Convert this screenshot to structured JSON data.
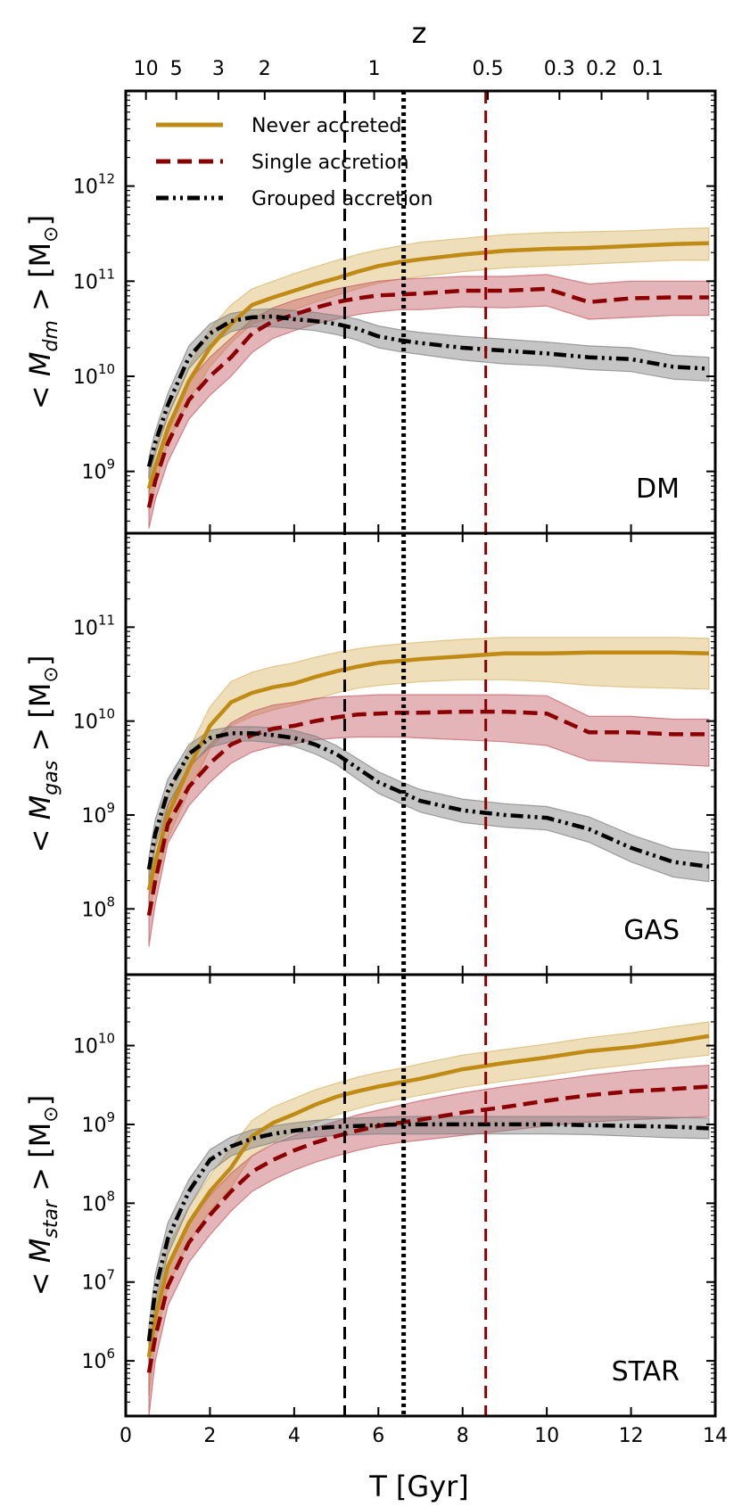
{
  "chart_data": {
    "type": "line",
    "x_label": "T [Gyr]",
    "x_range": [
      0,
      14
    ],
    "x_ticks": [
      0,
      2,
      4,
      6,
      8,
      10,
      12,
      14
    ],
    "top_axis": {
      "label": "z",
      "ticks": [
        {
          "label": "10",
          "t": 0.48
        },
        {
          "label": "5",
          "t": 1.2
        },
        {
          "label": "3",
          "t": 2.2
        },
        {
          "label": "2",
          "t": 3.3
        },
        {
          "label": "1",
          "t": 5.9
        },
        {
          "label": "0.5",
          "t": 8.6
        },
        {
          "label": "0.3",
          "t": 10.3
        },
        {
          "label": "0.2",
          "t": 11.3
        },
        {
          "label": "0.1",
          "t": 12.4
        }
      ]
    },
    "vlines": [
      {
        "x": 5.2,
        "style": "dashed",
        "color": "#000000"
      },
      {
        "x": 6.6,
        "style": "dotted",
        "color": "#000000"
      },
      {
        "x": 8.55,
        "style": "dashed",
        "color": "#8b0000"
      }
    ],
    "legend": {
      "position": "upper-left",
      "entries": [
        {
          "label": "Never accreted",
          "series": "never",
          "color": "#c08b14",
          "style": "solid"
        },
        {
          "label": "Single accretion",
          "series": "single",
          "color": "#8b0000",
          "style": "dashed"
        },
        {
          "label": "Grouped accretion",
          "series": "grouped",
          "color": "#000000",
          "style": "dashdot"
        }
      ]
    },
    "colors": {
      "never": "#c08b14",
      "single": "#8b0000",
      "grouped": "#000000",
      "band_never": "#d9b566",
      "band_single": "#c45a62",
      "band_grouped": "#7f7f7f"
    },
    "x": [
      0.55,
      0.7,
      1.0,
      1.5,
      2.0,
      2.5,
      3.0,
      3.5,
      4.0,
      4.5,
      5.0,
      5.5,
      6.0,
      6.5,
      7.0,
      8.0,
      9.0,
      10.0,
      11.0,
      12.0,
      13.0,
      13.85
    ],
    "panels": [
      {
        "label": "DM",
        "y_label_parts": {
          "pre": "< M",
          "sub": "dm",
          "post": " > [M",
          "sun": "⊙",
          "close": "]"
        },
        "ylog_range": [
          8.35,
          13.0
        ],
        "y_ticks": [
          9,
          10,
          11,
          12
        ],
        "series": [
          {
            "name": "Never accreted",
            "key": "never",
            "style": "solid",
            "values": [
              8.82,
              9.05,
              9.45,
              9.95,
              10.3,
              10.55,
              10.75,
              10.83,
              10.9,
              10.97,
              11.03,
              11.1,
              11.16,
              11.2,
              11.23,
              11.28,
              11.32,
              11.34,
              11.35,
              11.37,
              11.39,
              11.4
            ],
            "upper": [
              9.0,
              9.25,
              9.6,
              10.1,
              10.5,
              10.75,
              10.92,
              11.0,
              11.08,
              11.15,
              11.22,
              11.28,
              11.33,
              11.37,
              11.41,
              11.45,
              11.49,
              11.51,
              11.52,
              11.53,
              11.55,
              11.56
            ],
            "lower": [
              8.6,
              8.85,
              9.3,
              9.75,
              10.1,
              10.35,
              10.55,
              10.62,
              10.7,
              10.78,
              10.85,
              10.92,
              10.98,
              11.02,
              11.05,
              11.1,
              11.14,
              11.16,
              11.18,
              11.2,
              11.22,
              11.22
            ]
          },
          {
            "name": "Single accretion",
            "key": "single",
            "style": "dashed",
            "values": [
              8.62,
              8.9,
              9.3,
              9.75,
              10.0,
              10.2,
              10.45,
              10.58,
              10.65,
              10.72,
              10.78,
              10.82,
              10.85,
              10.86,
              10.87,
              10.9,
              10.9,
              10.92,
              10.78,
              10.82,
              10.83,
              10.83
            ],
            "upper": [
              8.8,
              9.1,
              9.5,
              9.95,
              10.2,
              10.4,
              10.6,
              10.72,
              10.8,
              10.86,
              10.92,
              10.96,
              11.0,
              11.02,
              11.03,
              11.05,
              11.05,
              11.07,
              10.97,
              11.0,
              11.0,
              11.0
            ],
            "lower": [
              8.4,
              8.7,
              9.1,
              9.55,
              9.8,
              10.0,
              10.25,
              10.4,
              10.48,
              10.55,
              10.6,
              10.65,
              10.68,
              10.7,
              10.7,
              10.73,
              10.72,
              10.74,
              10.6,
              10.62,
              10.64,
              10.64
            ]
          },
          {
            "name": "Grouped accretion",
            "key": "grouped",
            "style": "dashdot",
            "values": [
              9.05,
              9.3,
              9.7,
              10.2,
              10.45,
              10.58,
              10.62,
              10.63,
              10.6,
              10.58,
              10.55,
              10.5,
              10.42,
              10.38,
              10.35,
              10.3,
              10.27,
              10.24,
              10.2,
              10.18,
              10.1,
              10.08
            ],
            "upper": [
              9.15,
              9.42,
              9.82,
              10.32,
              10.55,
              10.66,
              10.7,
              10.71,
              10.69,
              10.67,
              10.64,
              10.6,
              10.53,
              10.49,
              10.46,
              10.42,
              10.39,
              10.36,
              10.32,
              10.3,
              10.22,
              10.2
            ],
            "lower": [
              8.92,
              9.18,
              9.58,
              10.08,
              10.33,
              10.47,
              10.52,
              10.52,
              10.5,
              10.48,
              10.44,
              10.38,
              10.3,
              10.26,
              10.23,
              10.17,
              10.13,
              10.11,
              10.07,
              10.05,
              9.97,
              9.95
            ]
          }
        ]
      },
      {
        "label": "GAS",
        "y_label_parts": {
          "pre": "< M",
          "sub": "gas",
          "post": " > [M",
          "sun": "⊙",
          "close": "]"
        },
        "ylog_range": [
          7.3,
          12.0
        ],
        "y_ticks": [
          8,
          9,
          10,
          11
        ],
        "series": [
          {
            "name": "Never accreted",
            "key": "never",
            "style": "solid",
            "values": [
              8.2,
              8.5,
              9.0,
              9.5,
              9.95,
              10.2,
              10.3,
              10.36,
              10.4,
              10.47,
              10.53,
              10.58,
              10.62,
              10.64,
              10.66,
              10.69,
              10.72,
              10.72,
              10.73,
              10.73,
              10.73,
              10.72
            ],
            "upper": [
              8.4,
              8.7,
              9.2,
              9.7,
              10.15,
              10.42,
              10.52,
              10.58,
              10.62,
              10.68,
              10.73,
              10.77,
              10.8,
              10.82,
              10.84,
              10.87,
              10.89,
              10.89,
              10.89,
              10.89,
              10.89,
              10.88
            ],
            "lower": [
              7.95,
              8.25,
              8.75,
              9.25,
              9.7,
              9.95,
              10.05,
              10.12,
              10.17,
              10.23,
              10.3,
              10.35,
              10.38,
              10.4,
              10.42,
              10.44,
              10.44,
              10.42,
              10.38,
              10.36,
              10.35,
              10.34
            ]
          },
          {
            "name": "Single accretion",
            "key": "single",
            "style": "dashed",
            "values": [
              7.93,
              8.3,
              8.9,
              9.3,
              9.55,
              9.75,
              9.85,
              9.92,
              9.95,
              10.0,
              10.04,
              10.07,
              10.08,
              10.09,
              10.09,
              10.1,
              10.1,
              10.08,
              9.88,
              9.88,
              9.86,
              9.86
            ],
            "upper": [
              8.15,
              8.55,
              9.1,
              9.5,
              9.75,
              9.98,
              10.1,
              10.17,
              10.2,
              10.24,
              10.26,
              10.27,
              10.28,
              10.28,
              10.28,
              10.28,
              10.28,
              10.27,
              10.05,
              10.05,
              10.02,
              10.02
            ],
            "lower": [
              7.6,
              8.05,
              8.7,
              9.1,
              9.35,
              9.55,
              9.67,
              9.73,
              9.76,
              9.8,
              9.82,
              9.83,
              9.83,
              9.83,
              9.82,
              9.8,
              9.78,
              9.74,
              9.58,
              9.56,
              9.54,
              9.52
            ]
          },
          {
            "name": "Grouped accretion",
            "key": "grouped",
            "style": "dashdot",
            "values": [
              8.42,
              8.8,
              9.25,
              9.65,
              9.82,
              9.87,
              9.87,
              9.85,
              9.82,
              9.75,
              9.65,
              9.5,
              9.35,
              9.25,
              9.15,
              9.05,
              9.0,
              8.97,
              8.85,
              8.65,
              8.5,
              8.45
            ],
            "upper": [
              8.55,
              8.95,
              9.38,
              9.75,
              9.9,
              9.94,
              9.94,
              9.93,
              9.9,
              9.84,
              9.74,
              9.6,
              9.46,
              9.36,
              9.27,
              9.17,
              9.12,
              9.09,
              8.98,
              8.79,
              8.64,
              8.6
            ],
            "lower": [
              8.28,
              8.65,
              9.1,
              9.52,
              9.72,
              9.78,
              9.79,
              9.77,
              9.73,
              9.65,
              9.54,
              9.38,
              9.23,
              9.13,
              9.03,
              8.92,
              8.87,
              8.84,
              8.71,
              8.5,
              8.34,
              8.29
            ]
          }
        ]
      },
      {
        "label": "STAR",
        "y_label_parts": {
          "pre": "< M",
          "sub": "star",
          "post": " > [M",
          "sun": "⊙",
          "close": "]"
        },
        "ylog_range": [
          5.3,
          10.9
        ],
        "y_ticks": [
          6,
          7,
          8,
          9,
          10
        ],
        "series": [
          {
            "name": "Never accreted",
            "key": "never",
            "style": "solid",
            "values": [
              6.05,
              6.55,
              7.2,
              7.75,
              8.15,
              8.45,
              8.85,
              9.02,
              9.13,
              9.25,
              9.35,
              9.42,
              9.48,
              9.53,
              9.58,
              9.7,
              9.78,
              9.85,
              9.93,
              9.98,
              10.05,
              10.12
            ],
            "upper": [
              6.3,
              6.8,
              7.45,
              7.95,
              8.35,
              8.7,
              9.05,
              9.22,
              9.33,
              9.44,
              9.52,
              9.6,
              9.66,
              9.71,
              9.77,
              9.88,
              9.95,
              10.02,
              10.1,
              10.16,
              10.24,
              10.3
            ],
            "lower": [
              5.55,
              6.25,
              6.95,
              7.5,
              7.9,
              8.2,
              8.6,
              8.78,
              8.9,
              9.02,
              9.12,
              9.2,
              9.27,
              9.32,
              9.37,
              9.47,
              9.55,
              9.62,
              9.7,
              9.76,
              9.83,
              9.88
            ]
          },
          {
            "name": "Single accretion",
            "key": "single",
            "style": "dashed",
            "values": [
              5.85,
              6.3,
              6.95,
              7.5,
              7.85,
              8.15,
              8.4,
              8.55,
              8.67,
              8.77,
              8.85,
              8.92,
              8.98,
              9.02,
              9.06,
              9.15,
              9.22,
              9.3,
              9.37,
              9.42,
              9.45,
              9.48
            ],
            "upper": [
              6.1,
              6.6,
              7.2,
              7.75,
              8.1,
              8.38,
              8.6,
              8.75,
              8.86,
              8.96,
              9.04,
              9.12,
              9.18,
              9.24,
              9.3,
              9.4,
              9.48,
              9.55,
              9.62,
              9.68,
              9.72,
              9.75
            ],
            "lower": [
              5.3,
              6.0,
              6.7,
              7.25,
              7.6,
              7.9,
              8.15,
              8.3,
              8.42,
              8.52,
              8.6,
              8.67,
              8.73,
              8.77,
              8.8,
              8.86,
              8.92,
              8.98,
              9.03,
              9.06,
              9.08,
              9.1
            ]
          },
          {
            "name": "Grouped accretion",
            "key": "grouped",
            "style": "dashdot",
            "values": [
              6.25,
              6.9,
              7.55,
              8.15,
              8.55,
              8.72,
              8.82,
              8.88,
              8.92,
              8.95,
              8.97,
              8.98,
              8.99,
              9.0,
              9.0,
              9.0,
              9.0,
              9.0,
              8.99,
              8.98,
              8.97,
              8.95
            ],
            "upper": [
              6.45,
              7.1,
              7.75,
              8.3,
              8.68,
              8.84,
              8.93,
              8.98,
              9.02,
              9.05,
              9.07,
              9.08,
              9.09,
              9.1,
              9.1,
              9.1,
              9.1,
              9.1,
              9.1,
              9.1,
              9.09,
              9.08
            ],
            "lower": [
              6.0,
              6.7,
              7.35,
              7.95,
              8.4,
              8.6,
              8.7,
              8.77,
              8.81,
              8.84,
              8.86,
              8.87,
              8.88,
              8.88,
              8.88,
              8.88,
              8.88,
              8.88,
              8.87,
              8.85,
              8.83,
              8.82
            ]
          }
        ]
      }
    ]
  }
}
